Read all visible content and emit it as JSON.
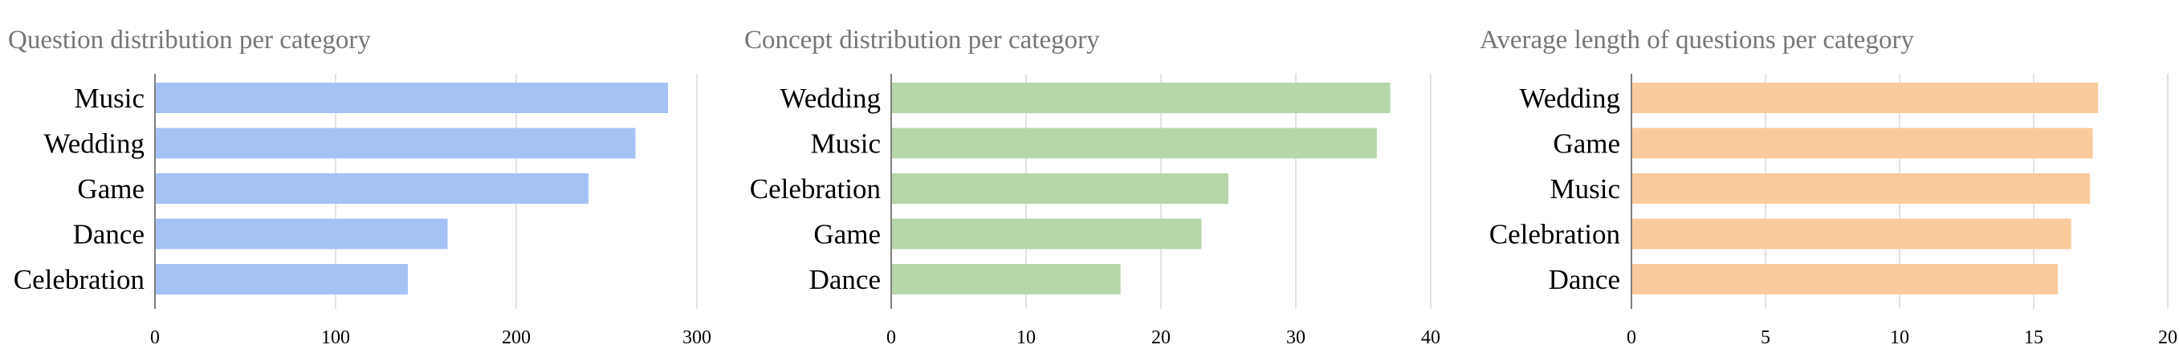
{
  "chart_data": [
    {
      "type": "bar",
      "orientation": "horizontal",
      "title": "Question distribution per category",
      "categories": [
        "Music",
        "Wedding",
        "Game",
        "Dance",
        "Celebration"
      ],
      "values": [
        284,
        266,
        240,
        162,
        140
      ],
      "xlim": [
        0,
        300
      ],
      "xticks": [
        "0",
        "100",
        "200",
        "300"
      ],
      "color": "#a4c2f4",
      "grid": true
    },
    {
      "type": "bar",
      "orientation": "horizontal",
      "title": "Concept distribution per category",
      "categories": [
        "Wedding",
        "Music",
        "Celebration",
        "Game",
        "Dance"
      ],
      "values": [
        37,
        36,
        25,
        23,
        17
      ],
      "xlim": [
        0,
        40
      ],
      "xticks": [
        "0",
        "10",
        "20",
        "30",
        "40"
      ],
      "color": "#b6d7a8",
      "grid": true
    },
    {
      "type": "bar",
      "orientation": "horizontal",
      "title": "Average length of questions per category",
      "categories": [
        "Wedding",
        "Game",
        "Music",
        "Celebration",
        "Dance"
      ],
      "values": [
        17.4,
        17.2,
        17.1,
        16.4,
        15.9
      ],
      "xlim": [
        0,
        20
      ],
      "xticks": [
        "0",
        "5",
        "10",
        "15",
        "20"
      ],
      "color": "#f9cb9c",
      "grid": true
    }
  ]
}
